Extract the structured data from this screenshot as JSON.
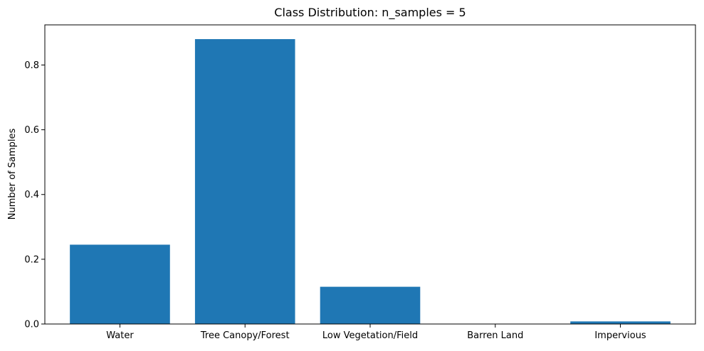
{
  "chart_data": {
    "type": "bar",
    "title": "Class Distribution: n_samples = 5",
    "xlabel": "",
    "ylabel": "Number of Samples",
    "categories": [
      "Water",
      "Tree Canopy/Forest",
      "Low Vegetation/Field",
      "Barren Land",
      "Impervious"
    ],
    "values": [
      0.245,
      0.88,
      0.115,
      0.0,
      0.008
    ],
    "ylim": [
      0,
      0.924
    ],
    "yticks": [
      0.0,
      0.2,
      0.4,
      0.6,
      0.8
    ],
    "ytick_labels": [
      "0.0",
      "0.2",
      "0.4",
      "0.6",
      "0.8"
    ],
    "bar_color": "#1f77b4",
    "grid": false
  }
}
